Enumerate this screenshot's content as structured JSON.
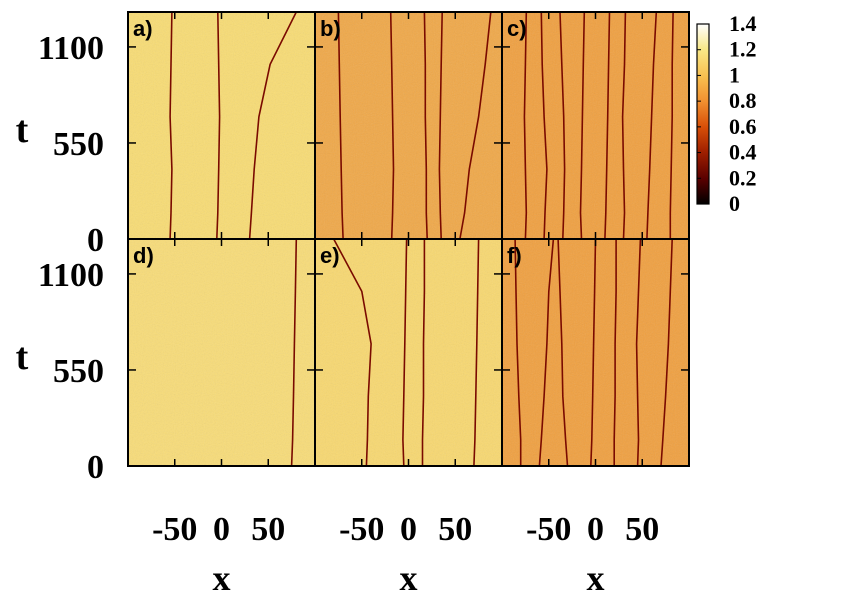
{
  "chart_data": {
    "type": "heatmap",
    "layout": "2x3 grid of panels",
    "panels": [
      {
        "label": "a)",
        "background": "#f8dc74",
        "tint": "light",
        "lines": [
          [
            -55,
            -54,
            -53,
            -55,
            -54,
            -53
          ],
          [
            -5,
            -4,
            -3,
            -2,
            -3,
            -4
          ],
          [
            30,
            32,
            35,
            40,
            52,
            80
          ]
        ]
      },
      {
        "label": "b)",
        "background": "#f0a848",
        "tint": "medium",
        "lines": [
          [
            -70,
            -71,
            -72,
            -73,
            -74,
            -75
          ],
          [
            -18,
            -17,
            -16,
            -17,
            -18,
            -19
          ],
          [
            20,
            19,
            19,
            18,
            18,
            17
          ],
          [
            35,
            34,
            33,
            34,
            35,
            36
          ],
          [
            55,
            60,
            65,
            75,
            82,
            88
          ]
        ]
      },
      {
        "label": "c)",
        "background": "#f0a040",
        "tint": "medium",
        "lines": [
          [
            -75,
            -74,
            -75,
            -76,
            -75,
            -74
          ],
          [
            -55,
            -54,
            -52,
            -55,
            -57,
            -58
          ],
          [
            -35,
            -34,
            -33,
            -34,
            -36,
            -38
          ],
          [
            -15,
            -16,
            -15,
            -14,
            -13,
            -12
          ],
          [
            10,
            11,
            12,
            13,
            14,
            15
          ],
          [
            30,
            31,
            30,
            29,
            31,
            32
          ],
          [
            55,
            56,
            58,
            60,
            62,
            65
          ],
          [
            80,
            80,
            81,
            82,
            82,
            83
          ]
        ]
      },
      {
        "label": "d)",
        "background": "#f8dc78",
        "tint": "light",
        "lines": [
          [
            75,
            76,
            77,
            78,
            79,
            80
          ]
        ]
      },
      {
        "label": "e)",
        "background": "#f8d870",
        "tint": "light",
        "lines": [
          [
            -45,
            -44,
            -43,
            -40,
            -50,
            -80
          ],
          [
            -5,
            -6,
            -5,
            -4,
            -3,
            -2
          ],
          [
            15,
            15,
            16,
            16,
            17,
            17
          ],
          [
            70,
            71,
            72,
            73,
            74,
            75
          ]
        ]
      },
      {
        "label": "f)",
        "background": "#f0a040",
        "tint": "medium",
        "lines": [
          [
            -80,
            -80,
            -82,
            -84,
            -85,
            -86
          ],
          [
            -60,
            -58,
            -55,
            -52,
            -50,
            -45
          ],
          [
            -30,
            -32,
            -35,
            -36,
            -38,
            -40
          ],
          [
            -5,
            -4,
            -3,
            -2,
            -1,
            0
          ],
          [
            20,
            20,
            21,
            21,
            22,
            22
          ],
          [
            45,
            46,
            45,
            44,
            46,
            48
          ],
          [
            70,
            72,
            75,
            78,
            80,
            82
          ]
        ]
      }
    ],
    "line_t": [
      0,
      150,
      400,
      700,
      1000,
      1300
    ],
    "xlabel": "x",
    "ylabel": "t",
    "x_ticks": [
      "-50",
      "0",
      "50"
    ],
    "y_ticks": [
      "0",
      "550",
      "1100"
    ],
    "xlim": [
      -100,
      100
    ],
    "ylim": [
      0,
      1300
    ],
    "colorbar": {
      "ticks": [
        "0",
        "0.2",
        "0.4",
        "0.6",
        "0.8",
        "1",
        "1.2",
        "1.4"
      ],
      "range": [
        0,
        1.4
      ],
      "colors": [
        "#000000",
        "#5a0000",
        "#a02000",
        "#d85008",
        "#f09030",
        "#f8c050",
        "#f8e888",
        "#ffffff"
      ]
    }
  }
}
